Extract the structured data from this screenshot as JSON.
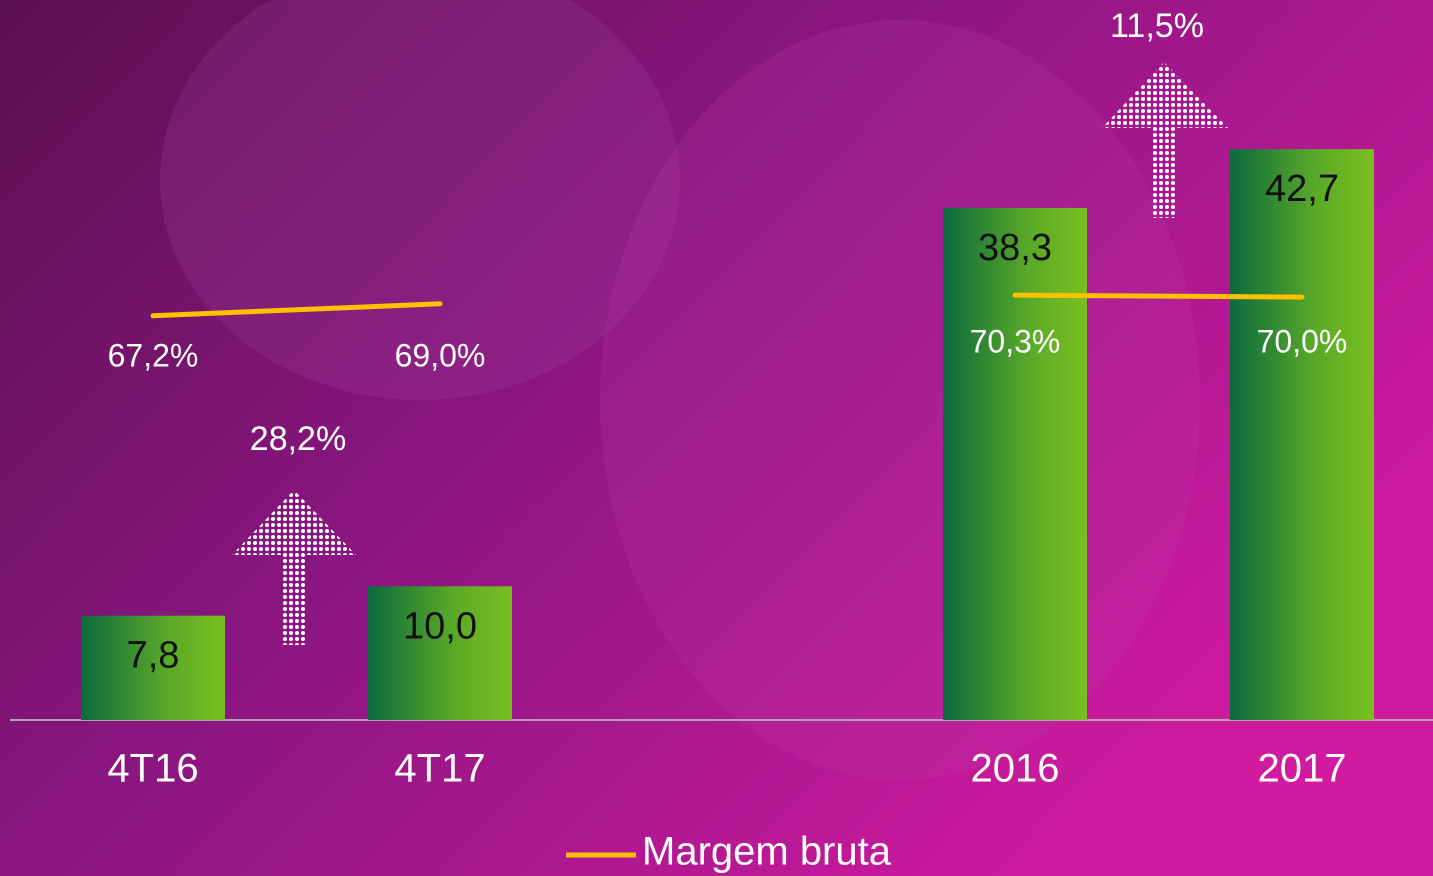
{
  "chart_data": {
    "type": "bar",
    "categories": [
      "4T16",
      "4T17",
      "2016",
      "2017"
    ],
    "values": [
      7.8,
      10.0,
      38.3,
      42.7
    ],
    "value_labels": [
      "7,8",
      "10,0",
      "38,3",
      "42,7"
    ],
    "series": [
      {
        "name": "Margem bruta",
        "color": "#ffc000",
        "axis": "y2",
        "values": [
          67.2,
          69.0,
          70.3,
          70.0
        ],
        "value_labels": [
          "67,2%",
          "69,0%",
          "70,3%",
          "70,0%"
        ]
      }
    ],
    "annotations": [
      "28,2%",
      "11,5%"
    ]
  }
}
